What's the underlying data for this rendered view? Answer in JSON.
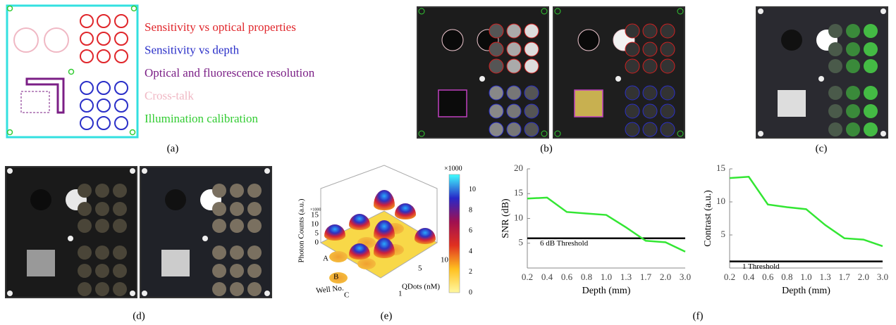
{
  "figure": {
    "panel_labels": [
      "(a)",
      "(b)",
      "(c)",
      "(d)",
      "(e)",
      "(f)"
    ],
    "legend": [
      {
        "text": "Sensitivity vs optical properties",
        "color": "#e0262b"
      },
      {
        "text": "Sensitivity vs depth",
        "color": "#2a2fc8"
      },
      {
        "text": "Optical and fluorescence resolution",
        "color": "#7b1f86"
      },
      {
        "text": "Cross-talk",
        "color": "#f0b8c4"
      },
      {
        "text": "Illumination calibration",
        "color": "#33cc33"
      }
    ],
    "plot3d": {
      "z_label": "Photon Counts (a.u.)",
      "z_multiplier": "×1000",
      "z_ticks": [
        0,
        5,
        10,
        15
      ],
      "well_label": "Well No.",
      "wells": [
        "A",
        "B",
        "C"
      ],
      "qdot_label": "QDots (nM)",
      "qdot_ticks": [
        1,
        5,
        10
      ],
      "colorbar_multiplier": "×1000",
      "colorbar_ticks": [
        0,
        2,
        4,
        6,
        8,
        10
      ]
    }
  },
  "chart_data": [
    {
      "type": "line",
      "x_label": "Depth (mm)",
      "y_label": "SNR (dB)",
      "categories": [
        "0.2",
        "0.4",
        "0.6",
        "0.8",
        "1.0",
        "1.3",
        "1.7",
        "2.0",
        "3.0"
      ],
      "values": [
        14,
        14.2,
        11.3,
        11,
        10.7,
        8.2,
        5.5,
        5.2,
        3.3
      ],
      "color": "#33e633",
      "ylim": [
        0,
        20
      ],
      "yticks": [
        5,
        10,
        15,
        20
      ],
      "threshold": {
        "value": 6,
        "label": "6 dB Threshold"
      }
    },
    {
      "type": "line",
      "x_label": "Depth (mm)",
      "y_label": "Contrast (a.u.)",
      "categories": [
        "0.2",
        "0.4",
        "0.6",
        "0.8",
        "1.0",
        "1.3",
        "1.7",
        "2.0",
        "3.0"
      ],
      "values": [
        13.6,
        13.8,
        9.6,
        9.2,
        8.9,
        6.5,
        4.5,
        4.3,
        3.3
      ],
      "color": "#33e633",
      "ylim": [
        0,
        15
      ],
      "yticks": [
        5,
        10,
        15
      ],
      "threshold": {
        "value": 1,
        "label": "1 Threshold"
      }
    }
  ]
}
